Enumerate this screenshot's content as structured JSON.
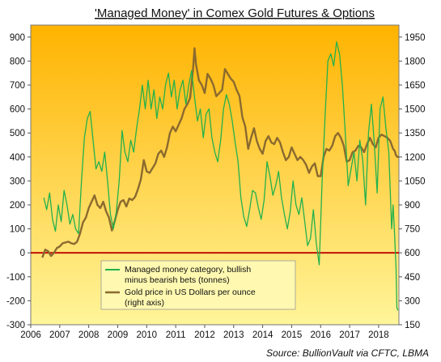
{
  "chart_data": {
    "type": "line",
    "title": "'Managed Money' in Comex Gold Futures & Options",
    "source": "Source: BullionVault via CFTC, LBMA",
    "x_ticks": [
      "2006",
      "2007",
      "2008",
      "2009",
      "2010",
      "2011",
      "2012",
      "2013",
      "2014",
      "2015",
      "2016",
      "2017",
      "2018"
    ],
    "x_range": [
      2006.0,
      2018.7
    ],
    "left_axis": {
      "min": -300,
      "max": 950,
      "ticks": [
        -300,
        -200,
        -100,
        0,
        100,
        200,
        300,
        400,
        500,
        600,
        700,
        800,
        900
      ],
      "tick_labels": [
        "-300",
        "-200",
        "-100",
        "0",
        "100",
        "200",
        "300",
        "400",
        "500",
        "600",
        "700",
        "800",
        "900"
      ]
    },
    "right_axis": {
      "min": 150,
      "max": 2025,
      "ticks": [
        150,
        300,
        450,
        600,
        750,
        900,
        1050,
        1200,
        1350,
        1500,
        1650,
        1800,
        1950
      ],
      "tick_labels": [
        "150",
        "300",
        "450",
        "600",
        "750",
        "900",
        "1050",
        "1200",
        "1350",
        "1500",
        "1650",
        "1800",
        "1950"
      ]
    },
    "zero_line_color": "#c00000",
    "background_gradient": [
      "#ffb300",
      "#fff59a"
    ],
    "legend_placement": "bottom-left",
    "series": [
      {
        "name": "Managed money category, bullish minus bearish bets (tonnes)",
        "legend_lines": [
          "Managed money category, bullish",
          "minus bearish bets (tonnes)"
        ],
        "axis": "left",
        "color": "#22b14c",
        "points": [
          [
            2006.45,
            230
          ],
          [
            2006.55,
            180
          ],
          [
            2006.65,
            250
          ],
          [
            2006.75,
            140
          ],
          [
            2006.85,
            90
          ],
          [
            2006.95,
            200
          ],
          [
            2007.05,
            130
          ],
          [
            2007.15,
            260
          ],
          [
            2007.25,
            200
          ],
          [
            2007.35,
            120
          ],
          [
            2007.45,
            160
          ],
          [
            2007.55,
            100
          ],
          [
            2007.65,
            80
          ],
          [
            2007.75,
            300
          ],
          [
            2007.85,
            480
          ],
          [
            2007.95,
            560
          ],
          [
            2008.05,
            590
          ],
          [
            2008.15,
            470
          ],
          [
            2008.25,
            350
          ],
          [
            2008.35,
            380
          ],
          [
            2008.45,
            340
          ],
          [
            2008.55,
            420
          ],
          [
            2008.65,
            300
          ],
          [
            2008.75,
            160
          ],
          [
            2008.85,
            100
          ],
          [
            2008.95,
            170
          ],
          [
            2009.05,
            300
          ],
          [
            2009.15,
            510
          ],
          [
            2009.25,
            420
          ],
          [
            2009.35,
            380
          ],
          [
            2009.45,
            470
          ],
          [
            2009.55,
            420
          ],
          [
            2009.65,
            520
          ],
          [
            2009.75,
            600
          ],
          [
            2009.85,
            700
          ],
          [
            2009.95,
            600
          ],
          [
            2010.05,
            720
          ],
          [
            2010.15,
            600
          ],
          [
            2010.25,
            680
          ],
          [
            2010.35,
            560
          ],
          [
            2010.45,
            650
          ],
          [
            2010.55,
            600
          ],
          [
            2010.65,
            700
          ],
          [
            2010.75,
            750
          ],
          [
            2010.85,
            650
          ],
          [
            2010.95,
            720
          ],
          [
            2011.05,
            600
          ],
          [
            2011.15,
            680
          ],
          [
            2011.25,
            720
          ],
          [
            2011.35,
            620
          ],
          [
            2011.45,
            700
          ],
          [
            2011.55,
            760
          ],
          [
            2011.65,
            650
          ],
          [
            2011.75,
            550
          ],
          [
            2011.85,
            600
          ],
          [
            2011.95,
            480
          ],
          [
            2012.05,
            580
          ],
          [
            2012.15,
            600
          ],
          [
            2012.25,
            480
          ],
          [
            2012.35,
            420
          ],
          [
            2012.45,
            380
          ],
          [
            2012.55,
            470
          ],
          [
            2012.65,
            600
          ],
          [
            2012.75,
            660
          ],
          [
            2012.85,
            620
          ],
          [
            2012.95,
            550
          ],
          [
            2013.05,
            460
          ],
          [
            2013.15,
            380
          ],
          [
            2013.25,
            230
          ],
          [
            2013.35,
            150
          ],
          [
            2013.45,
            110
          ],
          [
            2013.55,
            180
          ],
          [
            2013.65,
            260
          ],
          [
            2013.75,
            250
          ],
          [
            2013.85,
            190
          ],
          [
            2013.95,
            140
          ],
          [
            2014.05,
            220
          ],
          [
            2014.15,
            380
          ],
          [
            2014.25,
            320
          ],
          [
            2014.35,
            240
          ],
          [
            2014.45,
            280
          ],
          [
            2014.55,
            340
          ],
          [
            2014.65,
            230
          ],
          [
            2014.75,
            160
          ],
          [
            2014.85,
            100
          ],
          [
            2014.95,
            170
          ],
          [
            2015.05,
            300
          ],
          [
            2015.15,
            200
          ],
          [
            2015.25,
            160
          ],
          [
            2015.35,
            230
          ],
          [
            2015.45,
            130
          ],
          [
            2015.55,
            30
          ],
          [
            2015.65,
            60
          ],
          [
            2015.75,
            180
          ],
          [
            2015.85,
            40
          ],
          [
            2015.95,
            -50
          ],
          [
            2016.05,
            300
          ],
          [
            2016.15,
            560
          ],
          [
            2016.25,
            800
          ],
          [
            2016.35,
            830
          ],
          [
            2016.45,
            780
          ],
          [
            2016.55,
            880
          ],
          [
            2016.65,
            830
          ],
          [
            2016.75,
            700
          ],
          [
            2016.85,
            500
          ],
          [
            2016.95,
            280
          ],
          [
            2017.05,
            350
          ],
          [
            2017.15,
            420
          ],
          [
            2017.25,
            300
          ],
          [
            2017.35,
            470
          ],
          [
            2017.45,
            390
          ],
          [
            2017.55,
            200
          ],
          [
            2017.65,
            500
          ],
          [
            2017.75,
            620
          ],
          [
            2017.85,
            460
          ],
          [
            2017.95,
            250
          ],
          [
            2018.05,
            600
          ],
          [
            2018.15,
            650
          ],
          [
            2018.25,
            520
          ],
          [
            2018.35,
            420
          ],
          [
            2018.45,
            100
          ],
          [
            2018.5,
            200
          ],
          [
            2018.55,
            80
          ],
          [
            2018.6,
            -60
          ],
          [
            2018.63,
            -230
          ],
          [
            2018.67,
            -240
          ]
        ]
      },
      {
        "name": "Gold price in US Dollars per ounce (right axis)",
        "legend_lines": [
          "Gold price in US Dollars per ounce",
          "(right axis)"
        ],
        "axis": "right",
        "color": "#8b6a2f",
        "points": [
          [
            2006.4,
            570
          ],
          [
            2006.5,
            620
          ],
          [
            2006.6,
            610
          ],
          [
            2006.7,
            580
          ],
          [
            2006.8,
            600
          ],
          [
            2006.9,
            630
          ],
          [
            2007.0,
            640
          ],
          [
            2007.1,
            660
          ],
          [
            2007.2,
            665
          ],
          [
            2007.3,
            670
          ],
          [
            2007.4,
            660
          ],
          [
            2007.5,
            655
          ],
          [
            2007.6,
            670
          ],
          [
            2007.7,
            720
          ],
          [
            2007.8,
            790
          ],
          [
            2007.9,
            820
          ],
          [
            2008.0,
            880
          ],
          [
            2008.1,
            920
          ],
          [
            2008.2,
            960
          ],
          [
            2008.3,
            900
          ],
          [
            2008.4,
            880
          ],
          [
            2008.5,
            920
          ],
          [
            2008.6,
            860
          ],
          [
            2008.7,
            820
          ],
          [
            2008.8,
            740
          ],
          [
            2008.9,
            800
          ],
          [
            2009.0,
            870
          ],
          [
            2009.1,
            920
          ],
          [
            2009.2,
            930
          ],
          [
            2009.3,
            890
          ],
          [
            2009.4,
            940
          ],
          [
            2009.5,
            930
          ],
          [
            2009.6,
            950
          ],
          [
            2009.7,
            1000
          ],
          [
            2009.8,
            1060
          ],
          [
            2009.9,
            1180
          ],
          [
            2010.0,
            1110
          ],
          [
            2010.1,
            1100
          ],
          [
            2010.2,
            1130
          ],
          [
            2010.3,
            1160
          ],
          [
            2010.4,
            1220
          ],
          [
            2010.5,
            1240
          ],
          [
            2010.6,
            1200
          ],
          [
            2010.7,
            1260
          ],
          [
            2010.8,
            1350
          ],
          [
            2010.9,
            1390
          ],
          [
            2011.0,
            1360
          ],
          [
            2011.1,
            1400
          ],
          [
            2011.2,
            1440
          ],
          [
            2011.3,
            1500
          ],
          [
            2011.4,
            1530
          ],
          [
            2011.5,
            1570
          ],
          [
            2011.6,
            1750
          ],
          [
            2011.65,
            1880
          ],
          [
            2011.7,
            1780
          ],
          [
            2011.8,
            1680
          ],
          [
            2011.9,
            1650
          ],
          [
            2012.0,
            1600
          ],
          [
            2012.1,
            1720
          ],
          [
            2012.2,
            1690
          ],
          [
            2012.3,
            1650
          ],
          [
            2012.4,
            1580
          ],
          [
            2012.5,
            1600
          ],
          [
            2012.6,
            1620
          ],
          [
            2012.7,
            1750
          ],
          [
            2012.8,
            1720
          ],
          [
            2012.9,
            1690
          ],
          [
            2013.0,
            1670
          ],
          [
            2013.1,
            1620
          ],
          [
            2013.2,
            1580
          ],
          [
            2013.3,
            1450
          ],
          [
            2013.4,
            1390
          ],
          [
            2013.5,
            1250
          ],
          [
            2013.6,
            1320
          ],
          [
            2013.7,
            1380
          ],
          [
            2013.8,
            1300
          ],
          [
            2013.9,
            1250
          ],
          [
            2014.0,
            1220
          ],
          [
            2014.1,
            1300
          ],
          [
            2014.2,
            1330
          ],
          [
            2014.3,
            1290
          ],
          [
            2014.4,
            1280
          ],
          [
            2014.5,
            1320
          ],
          [
            2014.6,
            1290
          ],
          [
            2014.7,
            1230
          ],
          [
            2014.8,
            1180
          ],
          [
            2014.9,
            1200
          ],
          [
            2015.0,
            1260
          ],
          [
            2015.1,
            1220
          ],
          [
            2015.2,
            1180
          ],
          [
            2015.3,
            1200
          ],
          [
            2015.4,
            1180
          ],
          [
            2015.5,
            1150
          ],
          [
            2015.6,
            1100
          ],
          [
            2015.7,
            1140
          ],
          [
            2015.8,
            1160
          ],
          [
            2015.9,
            1080
          ],
          [
            2016.0,
            1080
          ],
          [
            2016.1,
            1200
          ],
          [
            2016.2,
            1250
          ],
          [
            2016.3,
            1240
          ],
          [
            2016.4,
            1270
          ],
          [
            2016.5,
            1330
          ],
          [
            2016.6,
            1350
          ],
          [
            2016.7,
            1320
          ],
          [
            2016.8,
            1270
          ],
          [
            2016.9,
            1170
          ],
          [
            2017.0,
            1180
          ],
          [
            2017.1,
            1230
          ],
          [
            2017.2,
            1240
          ],
          [
            2017.3,
            1270
          ],
          [
            2017.4,
            1260
          ],
          [
            2017.5,
            1230
          ],
          [
            2017.6,
            1280
          ],
          [
            2017.7,
            1320
          ],
          [
            2017.8,
            1280
          ],
          [
            2017.9,
            1260
          ],
          [
            2018.0,
            1320
          ],
          [
            2018.1,
            1340
          ],
          [
            2018.2,
            1330
          ],
          [
            2018.3,
            1320
          ],
          [
            2018.4,
            1300
          ],
          [
            2018.5,
            1250
          ],
          [
            2018.55,
            1240
          ],
          [
            2018.6,
            1210
          ],
          [
            2018.65,
            1200
          ],
          [
            2018.7,
            1200
          ]
        ]
      }
    ]
  }
}
